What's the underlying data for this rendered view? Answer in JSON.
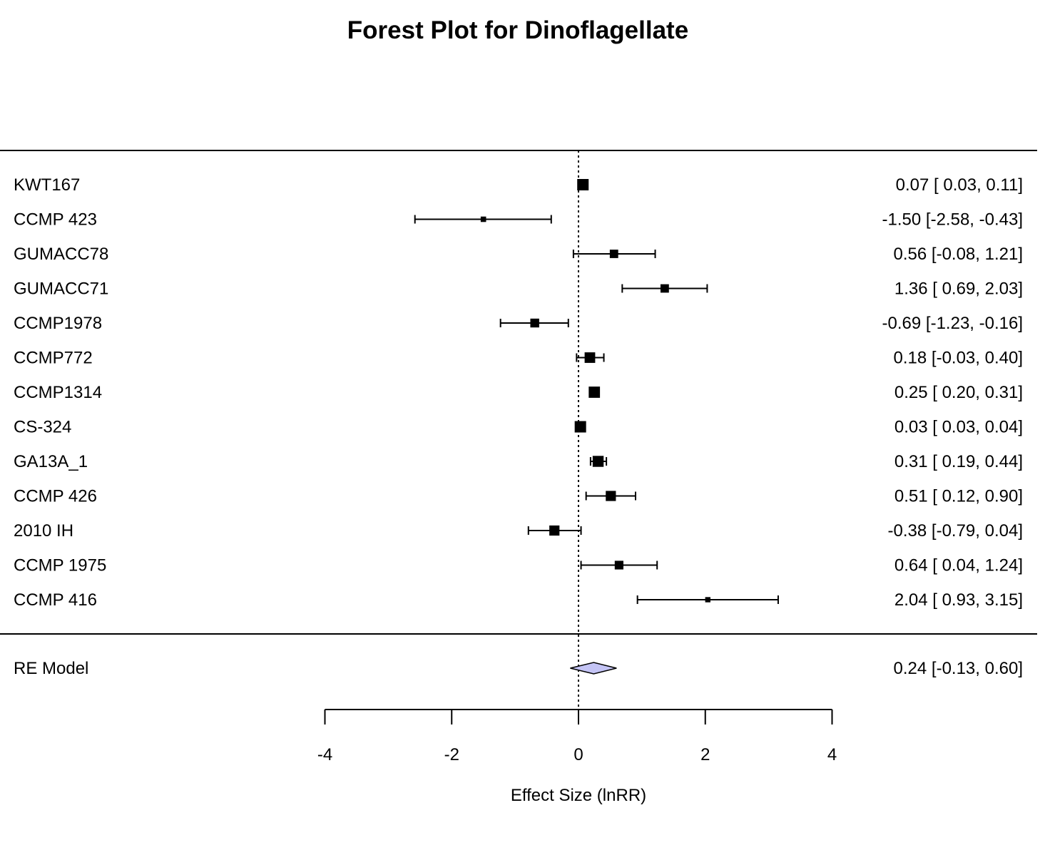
{
  "chart_data": {
    "type": "forest",
    "title": "Forest Plot for Dinoflagellate",
    "xlabel": "Effect Size (lnRR)",
    "xlim": [
      -4,
      4
    ],
    "x_ticks": [
      "-4",
      "-2",
      "0",
      "2",
      "4"
    ],
    "reference_line": 0,
    "studies": [
      {
        "name": "KWT167",
        "estimate": 0.07,
        "ci_low": 0.03,
        "ci_high": 0.11,
        "label": "0.07 [ 0.03,  0.11]",
        "weight": 1.0
      },
      {
        "name": "CCMP 423",
        "estimate": -1.5,
        "ci_low": -2.58,
        "ci_high": -0.43,
        "label": "-1.50 [-2.58, -0.43]",
        "weight": 0.3
      },
      {
        "name": "GUMACC78",
        "estimate": 0.56,
        "ci_low": -0.08,
        "ci_high": 1.21,
        "label": "0.56 [-0.08,  1.21]",
        "weight": 0.65
      },
      {
        "name": "GUMACC71",
        "estimate": 1.36,
        "ci_low": 0.69,
        "ci_high": 2.03,
        "label": "1.36 [ 0.69,  2.03]",
        "weight": 0.65
      },
      {
        "name": "CCMP1978",
        "estimate": -0.69,
        "ci_low": -1.23,
        "ci_high": -0.16,
        "label": "-0.69 [-1.23, -0.16]",
        "weight": 0.7
      },
      {
        "name": "CCMP772",
        "estimate": 0.18,
        "ci_low": -0.03,
        "ci_high": 0.4,
        "label": "0.18 [-0.03,  0.40]",
        "weight": 0.9
      },
      {
        "name": "CCMP1314",
        "estimate": 0.25,
        "ci_low": 0.2,
        "ci_high": 0.31,
        "label": "0.25 [ 0.20,  0.31]",
        "weight": 0.98
      },
      {
        "name": "CS-324",
        "estimate": 0.03,
        "ci_low": 0.03,
        "ci_high": 0.04,
        "label": "0.03 [ 0.03,  0.04]",
        "weight": 1.0
      },
      {
        "name": "GA13A_1",
        "estimate": 0.31,
        "ci_low": 0.19,
        "ci_high": 0.44,
        "label": "0.31 [ 0.19,  0.44]",
        "weight": 0.95
      },
      {
        "name": "CCMP 426",
        "estimate": 0.51,
        "ci_low": 0.12,
        "ci_high": 0.9,
        "label": "0.51 [ 0.12,  0.90]",
        "weight": 0.85
      },
      {
        "name": "2010 IH",
        "estimate": -0.38,
        "ci_low": -0.79,
        "ci_high": 0.04,
        "label": "-0.38 [-0.79,  0.04]",
        "weight": 0.85
      },
      {
        "name": "CCMP 1975",
        "estimate": 0.64,
        "ci_low": 0.04,
        "ci_high": 1.24,
        "label": "0.64 [ 0.04,  1.24]",
        "weight": 0.68
      },
      {
        "name": "CCMP 416",
        "estimate": 2.04,
        "ci_low": 0.93,
        "ci_high": 3.15,
        "label": "2.04 [ 0.93,  3.15]",
        "weight": 0.28
      }
    ],
    "summary": {
      "name": "RE Model",
      "estimate": 0.24,
      "ci_low": -0.13,
      "ci_high": 0.6,
      "label": "0.24 [-0.13,  0.60]",
      "color": "#c4c4f5"
    }
  }
}
